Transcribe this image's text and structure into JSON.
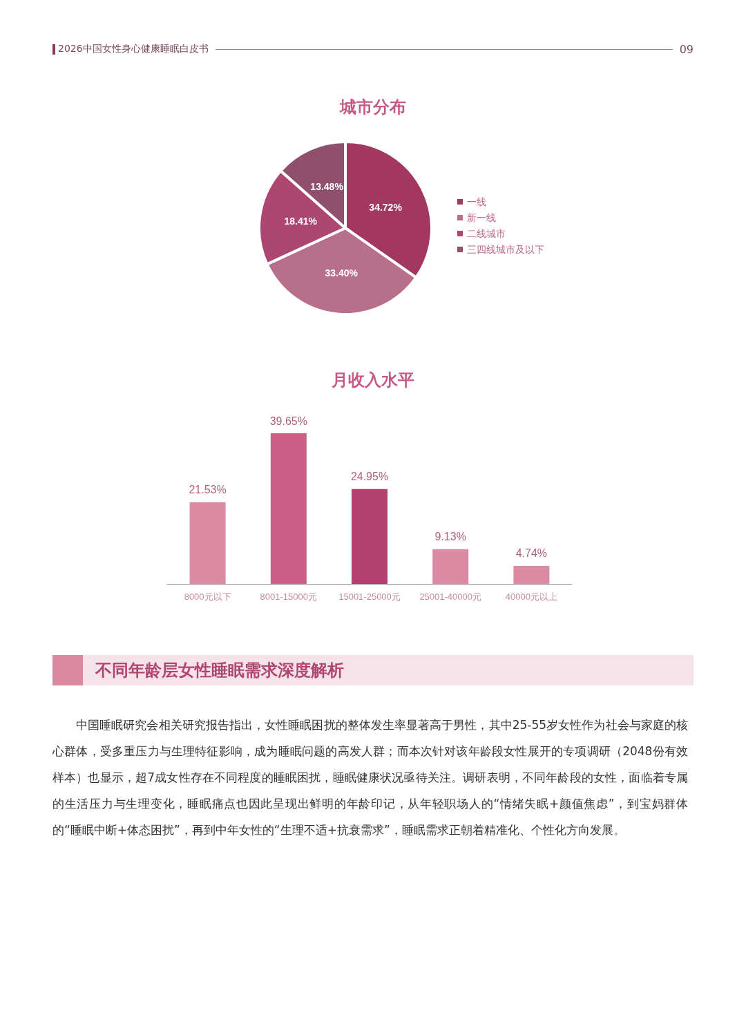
{
  "chart_data": [
    {
      "type": "other",
      "title": "2026中国女性身心健康睡眠白皮书",
      "annotations": [
        "09"
      ]
    },
    {
      "type": "pie",
      "title": "城市分布",
      "categories": [
        "一线",
        "新一线",
        "二线城市",
        "三四线城市及以下"
      ],
      "values": [
        34.72,
        33.4,
        18.41,
        13.48
      ],
      "colors": [
        "#a2375f",
        "#b8708a",
        "#ad4670",
        "#8f506e"
      ],
      "value_labels": [
        "34.72%",
        "33.40%",
        "18.41%",
        "13.48%"
      ],
      "legend": "right"
    },
    {
      "type": "bar",
      "title": "月收入水平",
      "categories": [
        "8000元以下",
        "8001-15000元",
        "15001-25000元",
        "25001-40000元",
        "40000元以上"
      ],
      "values": [
        21.53,
        39.65,
        24.95,
        9.13,
        4.74
      ],
      "colors": [
        "#da8ba3",
        "#cc5f86",
        "#b3416f",
        "#da8ba3",
        "#da8ba3"
      ],
      "value_labels": [
        "21.53%",
        "39.65%",
        "24.95%",
        "9.13%",
        "4.74%"
      ]
    },
    {
      "type": "other",
      "title": "不同年龄层女性睡眠需求深度解析",
      "annotations": [
        "中国睡眠研究会相关研究报告指出，女性睡眠困扰的整体发生率显著高于男性，其中25-55岁女性作为社会与家庭的核心群体，受多重压力与生理特征影响，成为睡眠问题的高发人群；而本次针对该年龄段女性展开的专项调研（2048份有效样本）也显示，超7成女性存在不同程度的睡眠困扰，睡眠健康状况亟待关注。调研表明，不同年龄段的女性，面临着专属的生活压力与生理变化，睡眠痛点也因此呈现出鲜明的年龄印记，从年轻职场人的“情绪失眠+颜值焦虑”，到宝妈群体的“睡眠中断+体态困扰”，再到中年女性的“生理不适+抗衰需求”，睡眠需求正朝着精准化、个性化方向发展。"
      ]
    }
  ]
}
